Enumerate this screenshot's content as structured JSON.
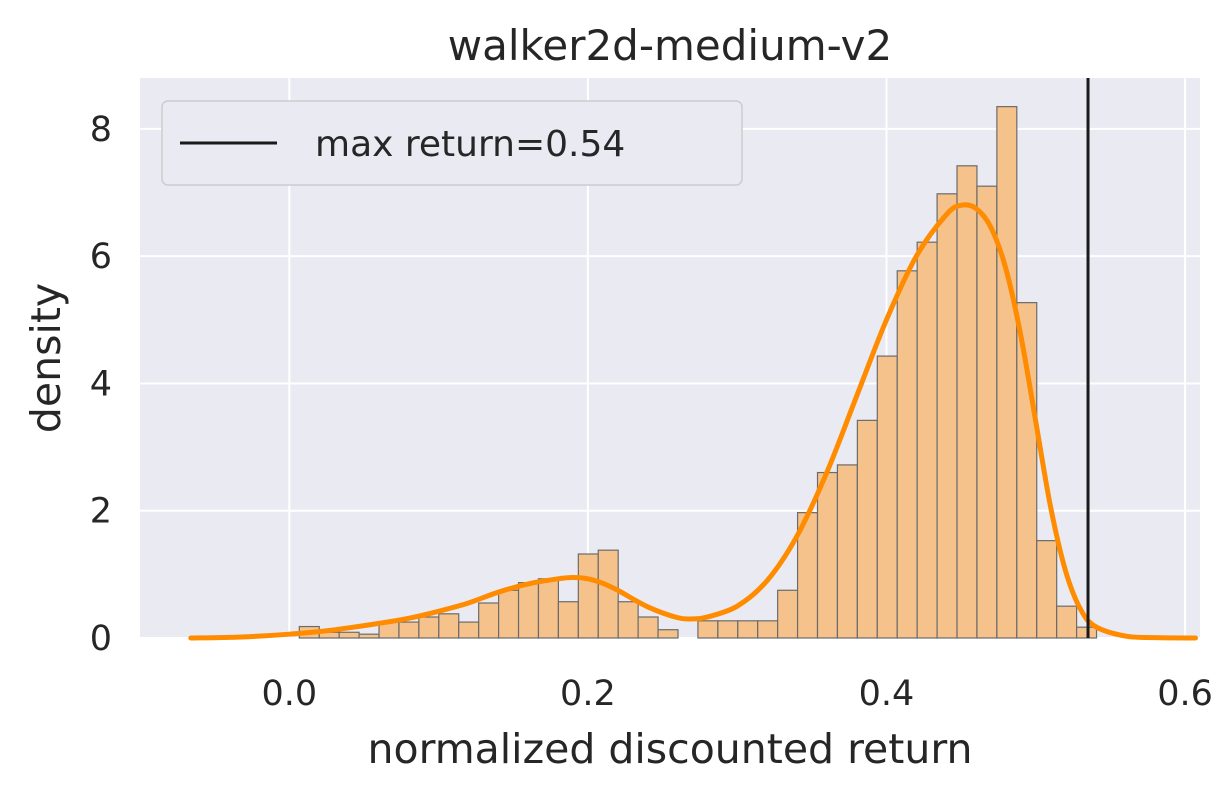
{
  "chart_data": {
    "type": "bar",
    "title": "walker2d-medium-v2",
    "xlabel": "normalized discounted return",
    "ylabel": "density",
    "xlim": [
      -0.1,
      0.61
    ],
    "ylim": [
      0,
      8.8
    ],
    "xticks": [
      0.0,
      0.2,
      0.4,
      0.6
    ],
    "xtick_labels": [
      "0.0",
      "0.2",
      "0.4",
      "0.6"
    ],
    "yticks": [
      0,
      2,
      4,
      6,
      8
    ],
    "ytick_labels": [
      "0",
      "2",
      "4",
      "6",
      "8"
    ],
    "grid": true,
    "legend_position": "upper-left",
    "legend": [
      {
        "label": "max return=0.54",
        "style": "line",
        "color": "#1a1a1a"
      }
    ],
    "histogram": {
      "name": "",
      "bin_start": 0.0067,
      "bin_width": 0.01335,
      "values": [
        0.18,
        0.09,
        0.09,
        0.06,
        0.25,
        0.25,
        0.33,
        0.38,
        0.25,
        0.55,
        0.75,
        0.87,
        0.93,
        0.57,
        1.32,
        1.38,
        0.57,
        0.33,
        0.13,
        0.0,
        0.27,
        0.27,
        0.27,
        0.27,
        0.75,
        1.97,
        2.6,
        2.72,
        3.42,
        4.43,
        5.77,
        6.22,
        6.98,
        7.42,
        7.1,
        8.35,
        5.27,
        1.53,
        0.5,
        0.17
      ],
      "fill_color": "#f5c28c",
      "edge_color": "#6b6b6b"
    },
    "kde": {
      "name": "",
      "color": "#ff8c00",
      "x": [
        -0.066,
        -0.04,
        -0.02,
        0.0,
        0.02,
        0.04,
        0.06,
        0.08,
        0.1,
        0.12,
        0.14,
        0.16,
        0.18,
        0.19,
        0.2,
        0.21,
        0.22,
        0.24,
        0.26,
        0.27,
        0.28,
        0.3,
        0.32,
        0.34,
        0.36,
        0.38,
        0.4,
        0.42,
        0.44,
        0.45,
        0.46,
        0.47,
        0.48,
        0.49,
        0.5,
        0.51,
        0.52,
        0.53,
        0.54,
        0.56,
        0.58,
        0.607
      ],
      "y": [
        0.0,
        0.01,
        0.03,
        0.06,
        0.1,
        0.16,
        0.23,
        0.31,
        0.42,
        0.55,
        0.72,
        0.85,
        0.93,
        0.95,
        0.93,
        0.86,
        0.75,
        0.49,
        0.32,
        0.3,
        0.33,
        0.5,
        0.9,
        1.6,
        2.6,
        3.8,
        5.0,
        6.0,
        6.65,
        6.8,
        6.75,
        6.45,
        5.8,
        4.75,
        3.4,
        2.05,
        1.05,
        0.45,
        0.18,
        0.03,
        0.005,
        0.0
      ]
    },
    "reference_line": {
      "x": 0.535,
      "label": "max return=0.54",
      "color": "#1a1a1a"
    }
  }
}
